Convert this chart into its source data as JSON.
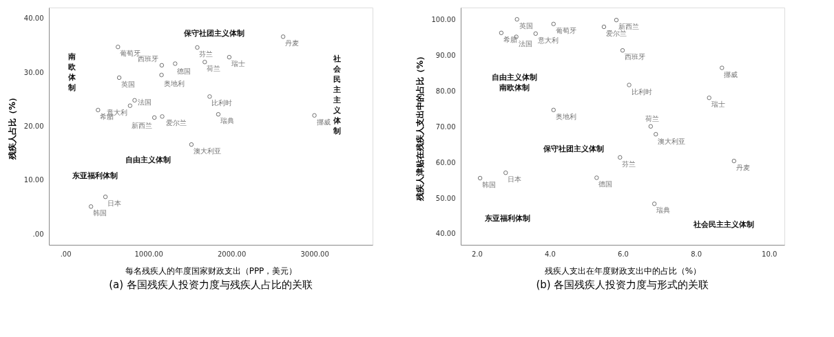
{
  "chart_data": [
    {
      "type": "scatter",
      "title": "(a) 各国残疾人投资力度与残疾人占比的关联",
      "xlabel": "每名残疾人的年度国家财政支出（PPP，美元）",
      "ylabel": "残疾人占比（%）",
      "xlim": [
        -200,
        3700
      ],
      "ylim": [
        -2,
        42
      ],
      "xticks": [
        {
          "value": 0,
          "label": ".00"
        },
        {
          "value": 1000,
          "label": "1000.00"
        },
        {
          "value": 2000,
          "label": "2000.00"
        },
        {
          "value": 3000,
          "label": "3000.00"
        }
      ],
      "yticks": [
        {
          "value": 0,
          "label": ".00"
        },
        {
          "value": 10,
          "label": "10.00"
        },
        {
          "value": 20,
          "label": "20.00"
        },
        {
          "value": 30,
          "label": "30.00"
        },
        {
          "value": 40,
          "label": "40.00"
        }
      ],
      "grid": false,
      "legend": false,
      "marker": "circle",
      "series": [
        {
          "name": "葡萄牙",
          "color": "#333333",
          "x": [
            632
          ],
          "values": [
            34.7
          ]
        },
        {
          "name": "英国",
          "color": "#333333",
          "x": [
            647
          ],
          "values": [
            29.0
          ]
        },
        {
          "name": "西班牙",
          "color": "#333333",
          "x": [
            1160
          ],
          "values": [
            31.3
          ]
        },
        {
          "name": "德国",
          "color": "#333333",
          "x": [
            1321
          ],
          "values": [
            31.6
          ]
        },
        {
          "name": "奥地利",
          "color": "#333333",
          "x": [
            1157
          ],
          "values": [
            29.5
          ]
        },
        {
          "name": "法国",
          "color": "#333333",
          "x": [
            833
          ],
          "values": [
            24.8
          ]
        },
        {
          "name": "意大利",
          "color": "#333333",
          "x": [
            778
          ],
          "values": [
            23.8
          ]
        },
        {
          "name": "希腊",
          "color": "#333333",
          "x": [
            392
          ],
          "values": [
            23.0
          ]
        },
        {
          "name": "新西兰",
          "color": "#333333",
          "x": [
            1071
          ],
          "values": [
            21.6
          ]
        },
        {
          "name": "爱尔兰",
          "color": "#333333",
          "x": [
            1165
          ],
          "values": [
            21.8
          ]
        },
        {
          "name": "澳大利亚",
          "color": "#333333",
          "x": [
            1517
          ],
          "values": [
            16.6
          ]
        },
        {
          "name": "日本",
          "color": "#333333",
          "x": [
            481
          ],
          "values": [
            6.9
          ]
        },
        {
          "name": "韩国",
          "color": "#333333",
          "x": [
            307
          ],
          "values": [
            5.1
          ]
        },
        {
          "name": "芬兰",
          "color": "#333333",
          "x": [
            1588
          ],
          "values": [
            34.6
          ]
        },
        {
          "name": "荷兰",
          "color": "#333333",
          "x": [
            1678
          ],
          "values": [
            31.9
          ]
        },
        {
          "name": "瑞士",
          "color": "#333333",
          "x": [
            1973
          ],
          "values": [
            32.8
          ]
        },
        {
          "name": "比利时",
          "color": "#333333",
          "x": [
            1737
          ],
          "values": [
            25.5
          ]
        },
        {
          "name": "瑞典",
          "color": "#333333",
          "x": [
            1841
          ],
          "values": [
            22.2
          ]
        },
        {
          "name": "丹麦",
          "color": "#333333",
          "x": [
            2622
          ],
          "values": [
            36.6
          ]
        },
        {
          "name": "挪威",
          "color": "#333333",
          "x": [
            2999
          ],
          "values": [
            22.0
          ]
        }
      ],
      "annotations": [
        "南欧体制",
        "保守社团主义体制",
        "社会民主主义体制",
        "自由主义体制",
        "东亚福利体制"
      ]
    },
    {
      "type": "scatter",
      "title": "(b) 各国残疾人投资力度与形式的关联",
      "xlabel": "残疾人支出在年度财政支出中的占比（%）",
      "ylabel": "残疾人津贴在残疾人支出中的占比（%）",
      "xlim": [
        1.56,
        10.42
      ],
      "ylim": [
        36.9,
        103.4
      ],
      "xticks": [
        {
          "value": 2,
          "label": "2.0"
        },
        {
          "value": 4,
          "label": "4.0"
        },
        {
          "value": 6,
          "label": "6.0"
        },
        {
          "value": 8,
          "label": "8.0"
        },
        {
          "value": 10,
          "label": "10.0"
        }
      ],
      "yticks": [
        {
          "value": 40,
          "label": "40.00"
        },
        {
          "value": 50,
          "label": "50.00"
        },
        {
          "value": 60,
          "label": "60.00"
        },
        {
          "value": 70,
          "label": "70.00"
        },
        {
          "value": 80,
          "label": "80.00"
        },
        {
          "value": 90,
          "label": "90.00"
        },
        {
          "value": 100,
          "label": "100.00"
        }
      ],
      "grid": false,
      "legend": false,
      "marker": "circle",
      "series": [
        {
          "name": "英国",
          "color": "#333333",
          "x": [
            3.1
          ],
          "values": [
            100.1
          ]
        },
        {
          "name": "希腊",
          "color": "#333333",
          "x": [
            2.67
          ],
          "values": [
            96.3
          ]
        },
        {
          "name": "法国",
          "color": "#333333",
          "x": [
            3.08
          ],
          "values": [
            95.2
          ]
        },
        {
          "name": "意大利",
          "color": "#333333",
          "x": [
            3.61
          ],
          "values": [
            96.1
          ]
        },
        {
          "name": "葡萄牙",
          "color": "#333333",
          "x": [
            4.1
          ],
          "values": [
            98.8
          ]
        },
        {
          "name": "爱尔兰",
          "color": "#333333",
          "x": [
            5.48
          ],
          "values": [
            98.0
          ]
        },
        {
          "name": "新西兰",
          "color": "#333333",
          "x": [
            5.82
          ],
          "values": [
            99.9
          ]
        },
        {
          "name": "西班牙",
          "color": "#333333",
          "x": [
            5.99
          ],
          "values": [
            91.4
          ]
        },
        {
          "name": "挪威",
          "color": "#333333",
          "x": [
            8.71
          ],
          "values": [
            86.5
          ]
        },
        {
          "name": "比利时",
          "color": "#333333",
          "x": [
            6.17
          ],
          "values": [
            81.7
          ]
        },
        {
          "name": "瑞士",
          "color": "#333333",
          "x": [
            8.36
          ],
          "values": [
            78.1
          ]
        },
        {
          "name": "奥地利",
          "color": "#333333",
          "x": [
            4.1
          ],
          "values": [
            74.7
          ]
        },
        {
          "name": "荷兰",
          "color": "#333333",
          "x": [
            6.76
          ],
          "values": [
            70.1
          ]
        },
        {
          "name": "澳大利亚",
          "color": "#333333",
          "x": [
            6.9
          ],
          "values": [
            67.9
          ]
        },
        {
          "name": "芬兰",
          "color": "#333333",
          "x": [
            5.92
          ],
          "values": [
            61.4
          ]
        },
        {
          "name": "丹麦",
          "color": "#333333",
          "x": [
            9.04
          ],
          "values": [
            60.4
          ]
        },
        {
          "name": "德国",
          "color": "#333333",
          "x": [
            5.28
          ],
          "values": [
            55.7
          ]
        },
        {
          "name": "瑞典",
          "color": "#333333",
          "x": [
            6.86
          ],
          "values": [
            48.4
          ]
        },
        {
          "name": "韩国",
          "color": "#333333",
          "x": [
            2.09
          ],
          "values": [
            55.6
          ]
        },
        {
          "name": "日本",
          "color": "#333333",
          "x": [
            2.79
          ],
          "values": [
            57.1
          ]
        }
      ],
      "annotations": [
        "自由主义体制南欧体制",
        "保守社团主义体制",
        "东亚福利体制",
        "社会民主主义体制"
      ]
    }
  ]
}
